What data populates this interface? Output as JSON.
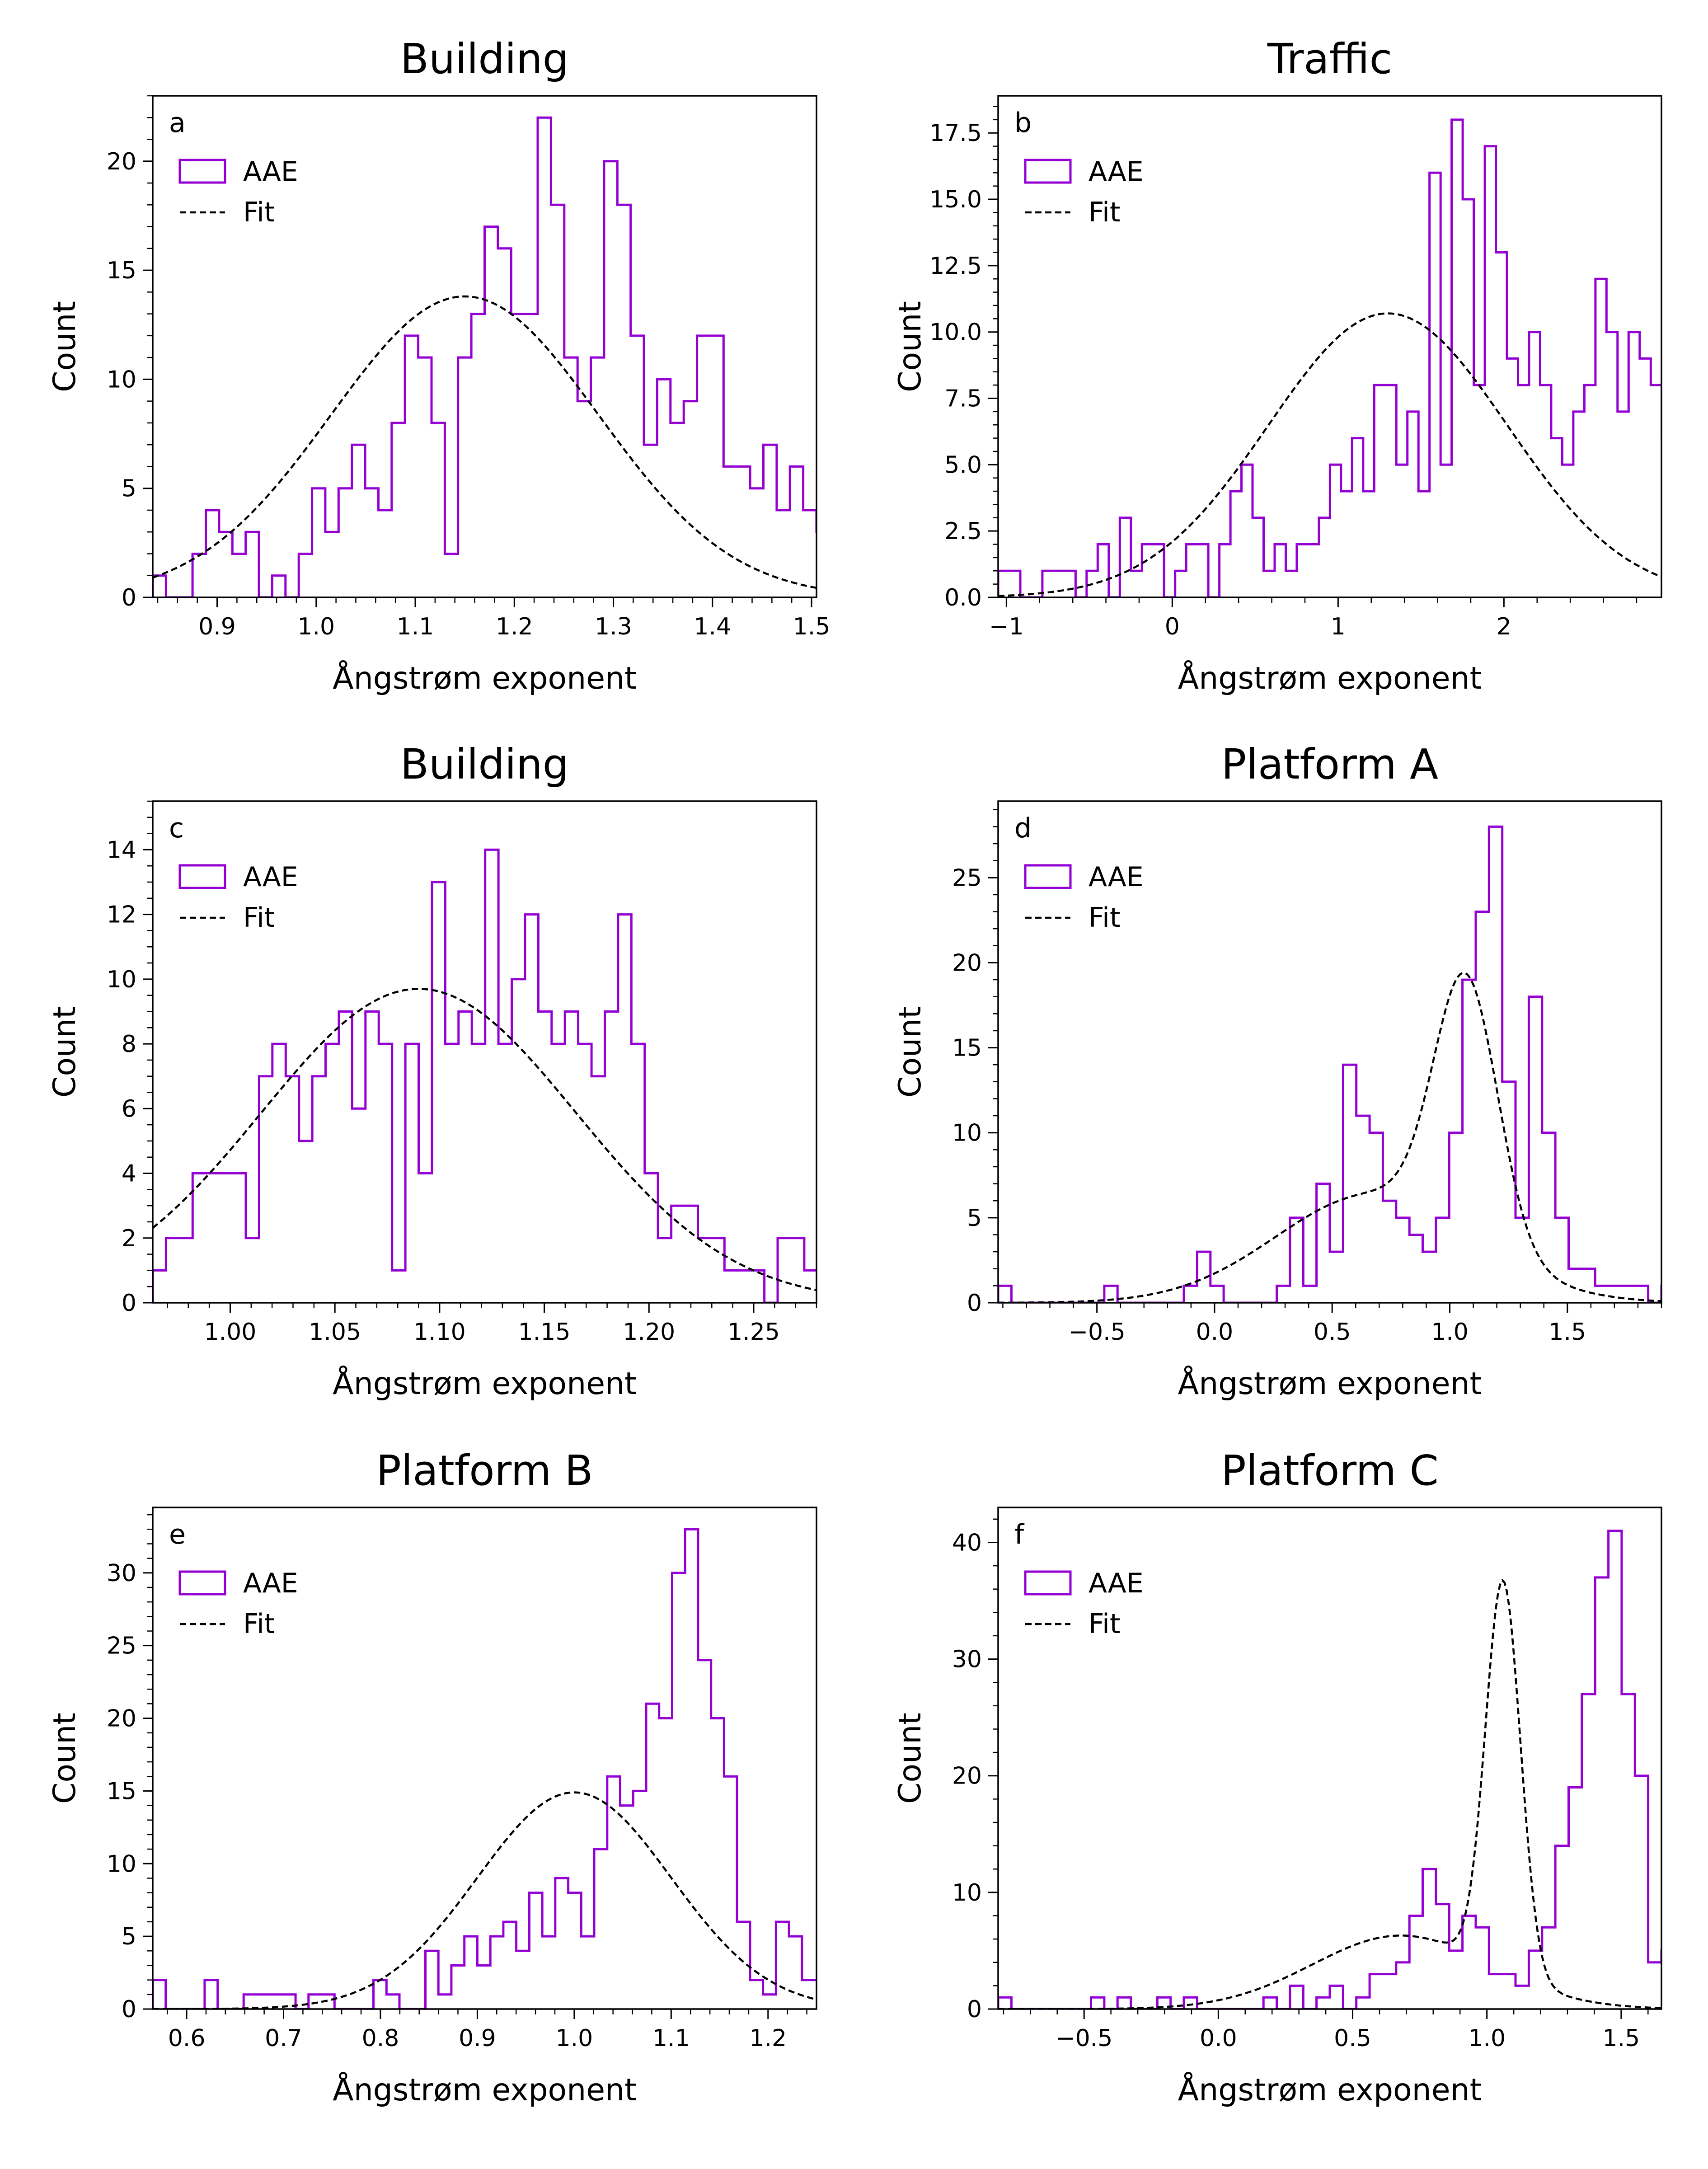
{
  "figure": {
    "hist_color": "#9400D3",
    "fit_color": "#000000",
    "legend": {
      "hist_label": "AAE",
      "fit_label": "Fit"
    }
  },
  "chart_data": [
    {
      "panel": "a",
      "type": "histogram",
      "title": "Building",
      "xlabel": "Ångstrøm exponent",
      "ylabel": "Count",
      "xlim": [
        0.835,
        1.505
      ],
      "ylim": [
        0,
        23
      ],
      "xticks": [
        0.9,
        1.0,
        1.1,
        1.2,
        1.3,
        1.4,
        1.5
      ],
      "xtick_labels": [
        "0.9",
        "1.0",
        "1.1",
        "1.2",
        "1.3",
        "1.4",
        "1.5"
      ],
      "yticks": [
        0,
        5,
        10,
        15,
        20
      ],
      "ytick_labels": [
        "0",
        "5",
        "10",
        "15",
        "20"
      ],
      "x_minor_step": 0.02,
      "y_minor_step": 1,
      "legend_position": "upper-left",
      "bin_start": 0.835,
      "bin_width": 0.0134,
      "counts": [
        1,
        0,
        0,
        2,
        4,
        3,
        2,
        3,
        0,
        1,
        0,
        2,
        5,
        3,
        5,
        7,
        5,
        4,
        8,
        12,
        11,
        8,
        2,
        11,
        13,
        17,
        16,
        13,
        13,
        22,
        18,
        11,
        9,
        11,
        20,
        18,
        12,
        7,
        10,
        8,
        9,
        12,
        12,
        6,
        6,
        5,
        7,
        4,
        6,
        4,
        3,
        5,
        3,
        1,
        1,
        2,
        0,
        0,
        1,
        1,
        0,
        2,
        4
      ],
      "fit_type": "gaussian",
      "fit": {
        "amplitude": 13.8,
        "mean": 1.15,
        "sigma": 0.135
      }
    },
    {
      "panel": "b",
      "type": "histogram",
      "title": "Traffic",
      "xlabel": "Ångstrøm exponent",
      "ylabel": "Count",
      "xlim": [
        -1.05,
        2.95
      ],
      "ylim": [
        0,
        18.9
      ],
      "xticks": [
        -1,
        0,
        1,
        2
      ],
      "xtick_labels": [
        "−1",
        "0",
        "1",
        "2"
      ],
      "yticks": [
        0,
        2.5,
        5,
        7.5,
        10,
        12.5,
        15,
        17.5
      ],
      "ytick_labels": [
        "0.0",
        "2.5",
        "5.0",
        "7.5",
        "10.0",
        "12.5",
        "15.0",
        "17.5"
      ],
      "x_minor_step": 0.2,
      "y_minor_step": 0.5,
      "legend_position": "upper-left",
      "bin_start": -1.05,
      "bin_width": 0.0667,
      "counts": [
        1,
        1,
        0,
        0,
        1,
        1,
        1,
        0,
        1,
        2,
        0,
        3,
        1,
        2,
        2,
        0,
        1,
        2,
        2,
        0,
        2,
        4,
        5,
        3,
        1,
        2,
        1,
        2,
        2,
        3,
        5,
        4,
        6,
        4,
        8,
        8,
        5,
        7,
        4,
        16,
        5,
        18,
        15,
        8,
        17,
        13,
        9,
        8,
        10,
        8,
        6,
        5,
        7,
        8,
        12,
        10,
        7,
        10,
        9,
        8,
        6,
        5,
        4,
        5,
        4,
        3,
        3,
        2,
        0,
        3,
        2,
        1,
        3,
        3,
        1,
        1,
        0
      ]
    },
    {
      "panel": "c",
      "type": "histogram",
      "title": "Building",
      "xlabel": "Ångstrøm exponent",
      "ylabel": "Count",
      "xlim": [
        0.963,
        1.28
      ],
      "ylim": [
        0,
        15.5
      ],
      "xticks": [
        1.0,
        1.05,
        1.1,
        1.15,
        1.2,
        1.25
      ],
      "xtick_labels": [
        "1.00",
        "1.05",
        "1.10",
        "1.15",
        "1.20",
        "1.25"
      ],
      "yticks": [
        0,
        2,
        4,
        6,
        8,
        10,
        12,
        14
      ],
      "ytick_labels": [
        "0",
        "2",
        "4",
        "6",
        "8",
        "10",
        "12",
        "14"
      ],
      "x_minor_step": 0.01,
      "y_minor_step": 0.5,
      "legend_position": "upper-left",
      "bin_start": 0.963,
      "bin_width": 0.00635,
      "counts": [
        1,
        2,
        2,
        4,
        4,
        4,
        4,
        2,
        7,
        8,
        7,
        5,
        7,
        8,
        9,
        6,
        9,
        8,
        1,
        8,
        4,
        13,
        8,
        9,
        8,
        14,
        8,
        10,
        12,
        9,
        8,
        9,
        8,
        7,
        9,
        12,
        8,
        4,
        2,
        3,
        3,
        2,
        2,
        1,
        1,
        1,
        0,
        2,
        2,
        1,
        1,
        0,
        2,
        1,
        0,
        1
      ]
    },
    {
      "panel": "d",
      "type": "histogram",
      "title": "Platform A",
      "xlabel": "Ångstrøm exponent",
      "ylabel": "Count",
      "xlim": [
        -0.92,
        1.9
      ],
      "ylim": [
        0,
        29.5
      ],
      "xticks": [
        -0.5,
        0.0,
        0.5,
        1.0,
        1.5
      ],
      "xtick_labels": [
        "−0.5",
        "0.0",
        "0.5",
        "1.0",
        "1.5"
      ],
      "yticks": [
        0,
        5,
        10,
        15,
        20,
        25
      ],
      "ytick_labels": [
        "0",
        "5",
        "10",
        "15",
        "20",
        "25"
      ],
      "x_minor_step": 0.1,
      "y_minor_step": 1,
      "legend_position": "upper-left",
      "bin_start": -0.92,
      "bin_width": 0.0564,
      "counts": [
        1,
        0,
        0,
        0,
        0,
        0,
        0,
        0,
        1,
        0,
        0,
        0,
        0,
        0,
        1,
        3,
        1,
        0,
        0,
        0,
        0,
        1,
        5,
        1,
        7,
        3,
        14,
        11,
        10,
        6,
        5,
        4,
        3,
        5,
        10,
        19,
        23,
        28,
        13,
        5,
        18,
        10,
        5,
        2,
        2,
        1,
        1,
        1,
        1,
        0,
        1,
        0
      ]
    },
    {
      "panel": "e",
      "type": "histogram",
      "title": "Platform B",
      "xlabel": "Ångstrøm exponent",
      "ylabel": "Count",
      "xlim": [
        0.565,
        1.25
      ],
      "ylim": [
        0,
        34.5
      ],
      "xticks": [
        0.6,
        0.7,
        0.8,
        0.9,
        1.0,
        1.1,
        1.2
      ],
      "xtick_labels": [
        "0.6",
        "0.7",
        "0.8",
        "0.9",
        "1.0",
        "1.1",
        "1.2"
      ],
      "yticks": [
        0,
        5,
        10,
        15,
        20,
        25,
        30
      ],
      "ytick_labels": [
        "0",
        "5",
        "10",
        "15",
        "20",
        "25",
        "30"
      ],
      "x_minor_step": 0.02,
      "y_minor_step": 1,
      "legend_position": "upper-left",
      "bin_start": 0.565,
      "bin_width": 0.0134,
      "counts": [
        2,
        0,
        0,
        0,
        2,
        0,
        0,
        1,
        1,
        1,
        1,
        0,
        1,
        1,
        0,
        0,
        0,
        2,
        1,
        0,
        0,
        4,
        1,
        3,
        5,
        3,
        5,
        6,
        4,
        8,
        5,
        9,
        8,
        5,
        11,
        16,
        14,
        15,
        21,
        20,
        30,
        33,
        24,
        20,
        16,
        6,
        2,
        1,
        6,
        5,
        2,
        2,
        0,
        2,
        2,
        2,
        1,
        1,
        1,
        0,
        0
      ]
    },
    {
      "panel": "f",
      "type": "histogram",
      "title": "Platform C",
      "xlabel": "Ångstrøm exponent",
      "ylabel": "Count",
      "xlim": [
        -0.82,
        1.65
      ],
      "ylim": [
        0,
        43
      ],
      "xticks": [
        -0.5,
        0.0,
        0.5,
        1.0,
        1.5
      ],
      "xtick_labels": [
        "−0.5",
        "0.0",
        "0.5",
        "1.0",
        "1.5"
      ],
      "yticks": [
        0,
        10,
        20,
        30,
        40
      ],
      "ytick_labels": [
        "0",
        "10",
        "20",
        "30",
        "40"
      ],
      "x_minor_step": 0.1,
      "y_minor_step": 2,
      "legend_position": "upper-left",
      "bin_start": -0.82,
      "bin_width": 0.0494,
      "counts": [
        1,
        0,
        0,
        0,
        0,
        0,
        0,
        1,
        0,
        1,
        0,
        0,
        1,
        0,
        1,
        0,
        0,
        0,
        0,
        0,
        1,
        0,
        2,
        0,
        1,
        2,
        0,
        1,
        3,
        3,
        4,
        8,
        12,
        9,
        5,
        8,
        7,
        3,
        3,
        2,
        5,
        7,
        14,
        19,
        27,
        37,
        41,
        27,
        20,
        4,
        5,
        3,
        2,
        3,
        2,
        1,
        1,
        1,
        1,
        2
      ]
    }
  ]
}
